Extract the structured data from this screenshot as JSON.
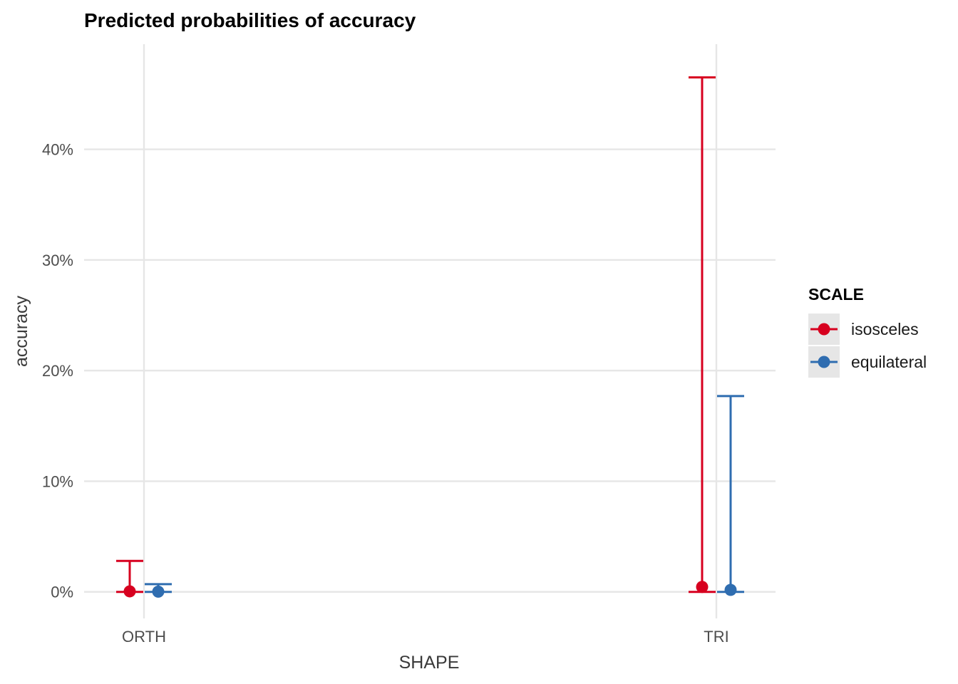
{
  "chart_data": {
    "type": "errorbar",
    "title": "Predicted probabilities of accuracy",
    "xlabel": "SHAPE",
    "ylabel": "accuracy",
    "categories": [
      "ORTH",
      "TRI"
    ],
    "y_ticks": [
      0,
      10,
      20,
      30,
      40
    ],
    "y_tick_labels": [
      "0%",
      "10%",
      "20%",
      "30%",
      "40%"
    ],
    "ylim": [
      -2.4,
      49.5
    ],
    "grid": true,
    "legend": {
      "title": "SCALE",
      "position": "right"
    },
    "series": [
      {
        "name": "isosceles",
        "color": "#d7001f",
        "points": [
          {
            "category": "ORTH",
            "estimate": 0.05,
            "lower": 0.0,
            "upper": 2.8
          },
          {
            "category": "TRI",
            "estimate": 0.45,
            "lower": 0.0,
            "upper": 46.5
          }
        ]
      },
      {
        "name": "equilateral",
        "color": "#2f6db0",
        "points": [
          {
            "category": "ORTH",
            "estimate": 0.02,
            "lower": 0.0,
            "upper": 0.7
          },
          {
            "category": "TRI",
            "estimate": 0.18,
            "lower": 0.0,
            "upper": 17.7
          }
        ]
      }
    ]
  }
}
